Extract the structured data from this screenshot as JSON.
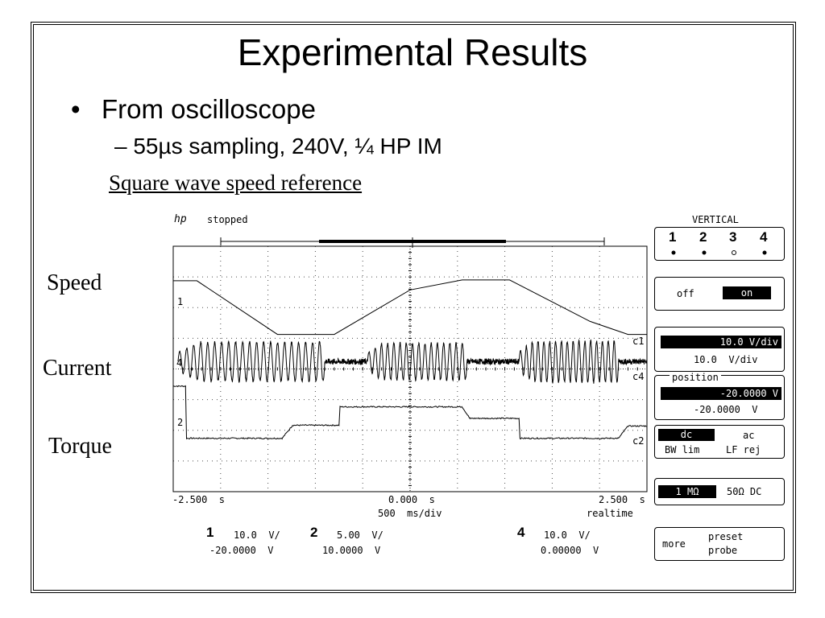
{
  "slide": {
    "title": "Experimental Results",
    "bullet": "From oscilloscope",
    "bullet_marker": "•",
    "subbullet_dash": "–",
    "subbullet": "55µs sampling, 240V, ¼ HP IM",
    "caption": "Square wave speed reference",
    "labels": {
      "speed": "Speed",
      "current": "Current",
      "torque": "Torque"
    }
  },
  "scope": {
    "logo": "hp",
    "status": "stopped",
    "time_left": "-2.500  s",
    "time_center": "0.000  s",
    "time_right": "2.500  s",
    "timebase": "500  ms/div",
    "mode": "realtime",
    "markers": {
      "ch1": "1",
      "ch2": "2",
      "ch4": "4",
      "c1": "c1",
      "c4": "c4",
      "c2": "c2"
    },
    "channels": [
      {
        "num": "1",
        "scale": "10.0  V/",
        "offset": "-20.0000  V"
      },
      {
        "num": "2",
        "scale": "5.00  V/",
        "offset": "10.0000  V"
      },
      {
        "num": "4",
        "scale": "10.0  V/",
        "offset": "0.00000  V"
      }
    ]
  },
  "panel": {
    "header": "VERTICAL",
    "channels": [
      "1",
      "2",
      "3",
      "4"
    ],
    "off_label": "off",
    "on_label": "on",
    "scale_selected": "10.0  V/div",
    "scale_value": "10.0  V/div",
    "position_label": "position",
    "position_selected": "-20.0000  V",
    "position_value": "-20.0000  V",
    "dc_label": "dc",
    "ac_label": "ac",
    "bw_lim": "BW lim",
    "lf_rej": "LF rej",
    "imp_1m": "1 MΩ",
    "imp_50": "50Ω DC",
    "more": "more",
    "preset": "preset",
    "probe": "probe"
  },
  "chart_data": {
    "type": "line",
    "x_unit": "s",
    "xlim": [
      -2.5,
      2.5
    ],
    "x_ticks": [
      -2.5,
      0,
      2.5
    ],
    "grid": true,
    "series": [
      {
        "name": "Speed",
        "channel": "c1",
        "x": [
          -2.5,
          -2.25,
          -1.4,
          -0.8,
          0.0,
          0.55,
          1.05,
          1.9,
          2.3,
          2.5
        ],
        "y": [
          2.55,
          2.55,
          -0.95,
          -0.95,
          1.95,
          2.6,
          2.6,
          -0.1,
          -0.95,
          -0.95
        ]
      },
      {
        "name": "Current",
        "channel": "c4",
        "segments": [
          {
            "x": [
              -2.45,
              -0.9
            ],
            "amplitude": 0.85,
            "cycles": 21
          },
          {
            "x": [
              -0.9,
              -0.45
            ],
            "amplitude": 0.12,
            "noise": true
          },
          {
            "x": [
              -0.45,
              0.6
            ],
            "amplitude": 0.8,
            "cycles": 16
          },
          {
            "x": [
              0.6,
              1.15
            ],
            "amplitude": 0.12,
            "noise": true
          },
          {
            "x": [
              1.15,
              2.2
            ],
            "amplitude": 0.9,
            "cycles": 17
          },
          {
            "x": [
              2.2,
              2.5
            ],
            "amplitude": 0.12,
            "noise": true
          }
        ],
        "offset": 0
      },
      {
        "name": "Torque",
        "channel": "c2",
        "x": [
          -2.5,
          -2.37,
          -2.36,
          -1.35,
          -1.24,
          -0.75,
          -0.74,
          0.55,
          0.63,
          1.15,
          1.16,
          2.2,
          2.3,
          2.5
        ],
        "y": [
          2.4,
          2.4,
          -1.0,
          -1.0,
          -0.15,
          -0.15,
          1.05,
          1.05,
          0.3,
          0.3,
          -1.0,
          -1.0,
          -0.2,
          -0.2
        ]
      }
    ]
  }
}
